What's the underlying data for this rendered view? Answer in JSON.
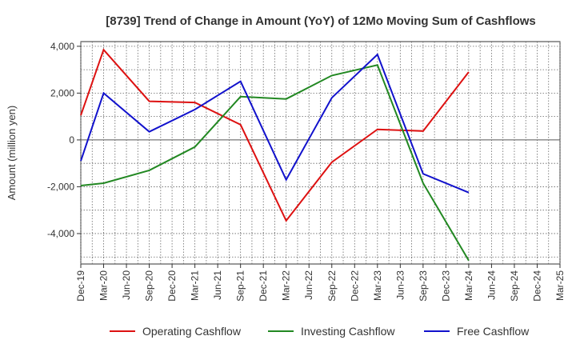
{
  "chart_data": {
    "type": "line",
    "title": "[8739]  Trend of Change in Amount (YoY) of 12Mo Moving Sum of Cashflows",
    "xlabel": "",
    "ylabel": "Amount (million yen)",
    "ylim": [
      -5300,
      4200
    ],
    "yticks": [
      4000,
      2000,
      0,
      -2000,
      -4000
    ],
    "ytick_labels": [
      "4,000",
      "2,000",
      "0",
      "-2,000",
      "-4,000"
    ],
    "categories": [
      "Dec-19",
      "Mar-20",
      "Jun-20",
      "Sep-20",
      "Dec-20",
      "Mar-21",
      "Jun-21",
      "Sep-21",
      "Dec-21",
      "Mar-22",
      "Jun-22",
      "Sep-22",
      "Dec-22",
      "Mar-23",
      "Jun-23",
      "Sep-23",
      "Dec-23",
      "Mar-24",
      "Jun-24",
      "Sep-24",
      "Dec-24",
      "Mar-25"
    ],
    "series": [
      {
        "name": "Operating Cashflow",
        "color": "#dd1111",
        "values": [
          1050,
          3850,
          null,
          1650,
          null,
          1600,
          null,
          650,
          null,
          -3450,
          null,
          -950,
          null,
          450,
          null,
          380,
          null,
          2900,
          null,
          null,
          null,
          null
        ]
      },
      {
        "name": "Investing Cashflow",
        "color": "#228822",
        "values": [
          -1950,
          -1850,
          null,
          -1300,
          null,
          -300,
          null,
          1850,
          null,
          1750,
          null,
          2750,
          null,
          3200,
          null,
          -1850,
          null,
          -5150,
          null,
          null,
          null,
          null
        ]
      },
      {
        "name": "Free Cashflow",
        "color": "#1111cc",
        "values": [
          -900,
          2000,
          null,
          350,
          null,
          1300,
          null,
          2500,
          null,
          -1700,
          null,
          1800,
          null,
          3650,
          null,
          -1450,
          null,
          -2250,
          null,
          null,
          null,
          null
        ]
      }
    ],
    "grid": true,
    "legend": "bottom"
  }
}
